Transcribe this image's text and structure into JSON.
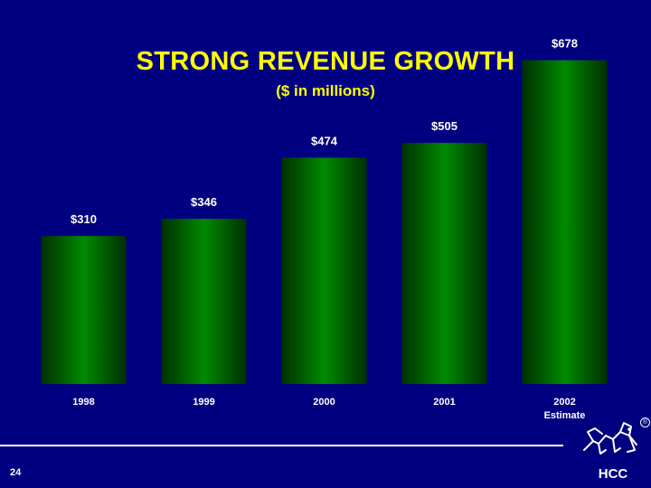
{
  "colors": {
    "background": "#000080",
    "title": "#ffff00",
    "text": "#ffffff",
    "bar_center": "#008a00",
    "bar_edge": "#003000"
  },
  "slide": {
    "title": "STRONG REVENUE GROWTH",
    "subtitle": "($ in millions)",
    "page_number": "24",
    "logo_text": "HCC",
    "registered_mark": "®"
  },
  "chart_data": {
    "type": "bar",
    "categories": [
      "1998",
      "1999",
      "2000",
      "2001",
      "2002"
    ],
    "category_sublabels": [
      "",
      "",
      "",
      "",
      "Estimate"
    ],
    "values": [
      310,
      346,
      474,
      505,
      678
    ],
    "data_labels": [
      "$310",
      "$346",
      "$474",
      "$505",
      "$678"
    ],
    "title": "STRONG REVENUE GROWTH",
    "subtitle": "($ in millions)",
    "ylim": [
      0,
      700
    ],
    "grid": false,
    "legend": "none"
  }
}
